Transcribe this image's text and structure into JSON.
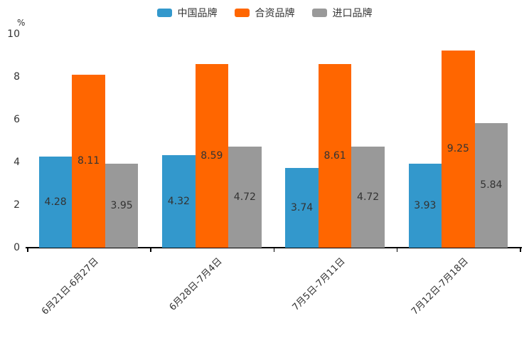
{
  "chart_data": {
    "type": "bar",
    "categories": [
      "6月21日-6月27日",
      "6月28日-7月4日",
      "7月5日-7月11日",
      "7月12日-7月18日"
    ],
    "series": [
      {
        "name": "中国品牌",
        "color": "#3398cc",
        "values": [
          4.28,
          4.32,
          3.74,
          3.93
        ]
      },
      {
        "name": "合资品牌",
        "color": "#ff6600",
        "values": [
          8.11,
          8.59,
          8.61,
          9.25
        ]
      },
      {
        "name": "进口品牌",
        "color": "#999999",
        "values": [
          3.95,
          4.72,
          4.72,
          5.84
        ]
      }
    ],
    "title": "",
    "xlabel": "",
    "ylabel": "%",
    "ylim": [
      0,
      10
    ],
    "yticks": [
      0,
      2,
      4,
      6,
      8,
      10
    ],
    "legend_position": "top",
    "grid": false,
    "value_label_position": "inside-center",
    "axis_color": "#000000",
    "text_color": "#333333"
  }
}
